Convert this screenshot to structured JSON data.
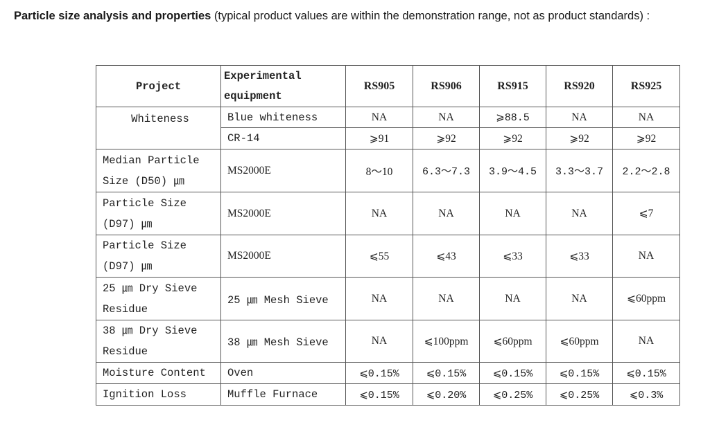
{
  "intro": {
    "title_bold": "Particle size analysis and properties",
    "title_rest": " (typical product values are within the demonstration range, not as product standards) :"
  },
  "table": {
    "headers": [
      "Project",
      "Experimental equipment",
      "RS905",
      "RS906",
      "RS915",
      "RS920",
      "RS925"
    ],
    "rows": [
      {
        "project": "Whiteness",
        "equipment": "Blue whiteness",
        "values": [
          "NA",
          "NA",
          "⩾88.5",
          "NA",
          "NA"
        ]
      },
      {
        "project": "",
        "equipment": "CR-14",
        "values": [
          "⩾91",
          "⩾92",
          "⩾92",
          "⩾92",
          "⩾92"
        ]
      },
      {
        "project": "Median Particle Size (D50) ㎛",
        "equipment": "MS2000E",
        "values": [
          "8～10",
          "6.3～7.3",
          "3.9～4.5",
          "3.3～3.7",
          "2.2～2.8"
        ]
      },
      {
        "project": "Particle Size (D97) ㎛",
        "equipment": "MS2000E",
        "values": [
          "NA",
          "NA",
          "NA",
          "NA",
          "⩽7"
        ]
      },
      {
        "project": "Particle Size (D97) ㎛",
        "equipment": "MS2000E",
        "values": [
          "⩽55",
          "⩽43",
          "⩽33",
          "⩽33",
          "NA"
        ]
      },
      {
        "project": "25 ㎛ Dry Sieve Residue",
        "equipment": "25 ㎛ Mesh Sieve",
        "values": [
          "NA",
          "NA",
          "NA",
          "NA",
          "⩽60ppm"
        ]
      },
      {
        "project": "38 ㎛ Dry Sieve Residue",
        "equipment": "38 ㎛ Mesh Sieve",
        "values": [
          "NA",
          "⩽100ppm",
          "⩽60ppm",
          "⩽60ppm",
          "NA"
        ]
      },
      {
        "project": "Moisture Content",
        "equipment": "Oven",
        "values": [
          "⩽0.15%",
          "⩽0.15%",
          "⩽0.15%",
          "⩽0.15%",
          "⩽0.15%"
        ]
      },
      {
        "project": "Ignition Loss",
        "equipment": "Muffle Furnace",
        "values": [
          "⩽0.15%",
          "⩽0.20%",
          "⩽0.25%",
          "⩽0.25%",
          "⩽0.3%"
        ]
      }
    ]
  }
}
